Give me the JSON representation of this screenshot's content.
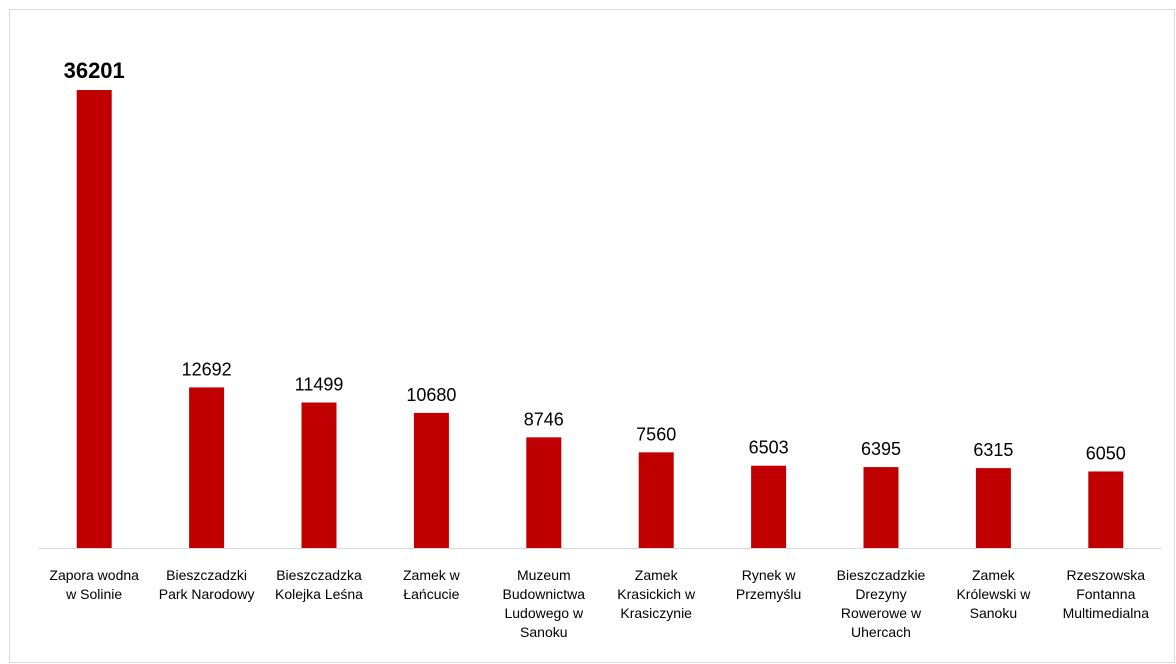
{
  "chart_data": {
    "type": "bar",
    "categories": [
      "Zapora wodna w Solinie",
      "Bieszczadzki Park Narodowy",
      "Bieszczadzka Kolejka Leśna",
      "Zamek w Łańcucie",
      "Muzeum Budownictwa Ludowego w Sanoku",
      "Zamek Krasickich w Krasiczynie",
      "Rynek w Przemyślu",
      "Bieszczadzkie Drezyny Rowerowe w Uhercach",
      "Zamek Królewski w Sanoku",
      "Rzeszowska Fontanna Multimedialna"
    ],
    "values": [
      36201,
      12692,
      11499,
      10680,
      8746,
      7560,
      6503,
      6395,
      6315,
      6050
    ],
    "color": "#c00000"
  }
}
